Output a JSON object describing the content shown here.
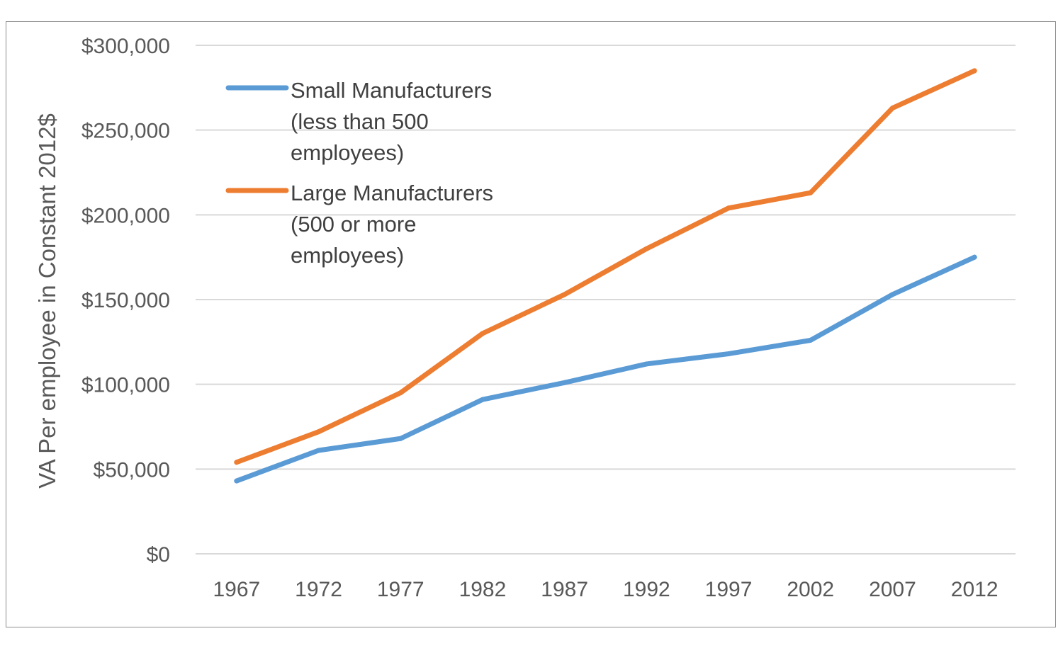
{
  "chart_data": {
    "type": "line",
    "title": "",
    "xlabel": "",
    "ylabel": "VA Per employee in Constant 2012$",
    "categories": [
      "1967",
      "1972",
      "1977",
      "1982",
      "1987",
      "1992",
      "1997",
      "2002",
      "2007",
      "2012"
    ],
    "y_tick_labels": [
      "$0",
      "$50,000",
      "$100,000",
      "$150,000",
      "$200,000",
      "$250,000",
      "$300,000"
    ],
    "y_ticks": [
      0,
      50000,
      100000,
      150000,
      200000,
      250000,
      300000
    ],
    "ylim": [
      0,
      300000
    ],
    "grid": true,
    "legend_position": "top-left",
    "series": [
      {
        "name": "Small Manufacturers (less than 500 employees)",
        "legend_lines": [
          "Small Manufacturers",
          "(less than 500",
          "employees)"
        ],
        "color": "#5b9bd5",
        "values": [
          43000,
          61000,
          68000,
          91000,
          101000,
          112000,
          118000,
          126000,
          153000,
          175000
        ]
      },
      {
        "name": "Large Manufacturers (500 or more employees)",
        "legend_lines": [
          "Large Manufacturers",
          "(500 or more",
          "employees)"
        ],
        "color": "#ed7d31",
        "values": [
          54000,
          72000,
          95000,
          130000,
          153000,
          180000,
          204000,
          213000,
          263000,
          285000
        ]
      }
    ]
  }
}
